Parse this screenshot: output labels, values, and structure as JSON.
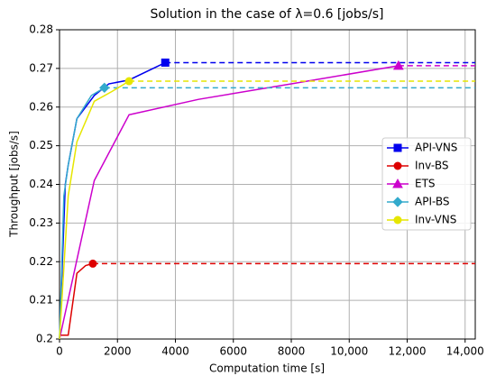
{
  "chart_data": {
    "type": "line",
    "title": "Solution in the case of λ=0.6 [jobs/s]",
    "xlabel": "Computation time [s]",
    "ylabel": "Throughput [jobs/s]",
    "xlim": [
      0,
      14350
    ],
    "ylim": [
      0.2,
      0.28
    ],
    "xticks": [
      0,
      2000,
      4000,
      6000,
      8000,
      {
        "value": 10000,
        "label": "10,000"
      },
      {
        "value": 12000,
        "label": "12,000"
      },
      {
        "value": 14000,
        "label": "14,000"
      }
    ],
    "yticks": [
      0.2,
      0.21,
      0.22,
      0.23,
      0.24,
      0.25,
      0.26,
      0.27,
      0.28
    ],
    "grid": true,
    "legend": "right",
    "series": [
      {
        "name": "API-VNS",
        "color": "#0000ee",
        "marker": "square",
        "x": [
          0,
          200,
          300,
          600,
          1200,
          1700,
          2400,
          3650
        ],
        "values": [
          0.2,
          0.24,
          0.245,
          0.257,
          0.263,
          0.266,
          0.267,
          0.2715
        ]
      },
      {
        "name": "Inv-BS",
        "color": "#dd0000",
        "marker": "circle",
        "x": [
          0,
          300,
          600,
          900,
          1150
        ],
        "values": [
          0.201,
          0.201,
          0.217,
          0.219,
          0.2195
        ]
      },
      {
        "name": "ETS",
        "color": "#cc00cc",
        "marker": "triangle",
        "x": [
          0,
          1200,
          2400,
          4800,
          8000,
          11700
        ],
        "values": [
          0.2,
          0.241,
          0.258,
          0.262,
          0.266,
          0.2707
        ]
      },
      {
        "name": "API-BS",
        "color": "#33aacc",
        "marker": "diamond",
        "x": [
          0,
          150,
          300,
          600,
          1100,
          1550
        ],
        "values": [
          0.2,
          0.237,
          0.245,
          0.257,
          0.263,
          0.265
        ]
      },
      {
        "name": "Inv-VNS",
        "color": "#e6e600",
        "marker": "circle",
        "x": [
          0,
          300,
          600,
          1200,
          1800,
          2400
        ],
        "values": [
          0.2,
          0.237,
          0.251,
          0.2615,
          0.264,
          0.2667
        ]
      }
    ]
  }
}
